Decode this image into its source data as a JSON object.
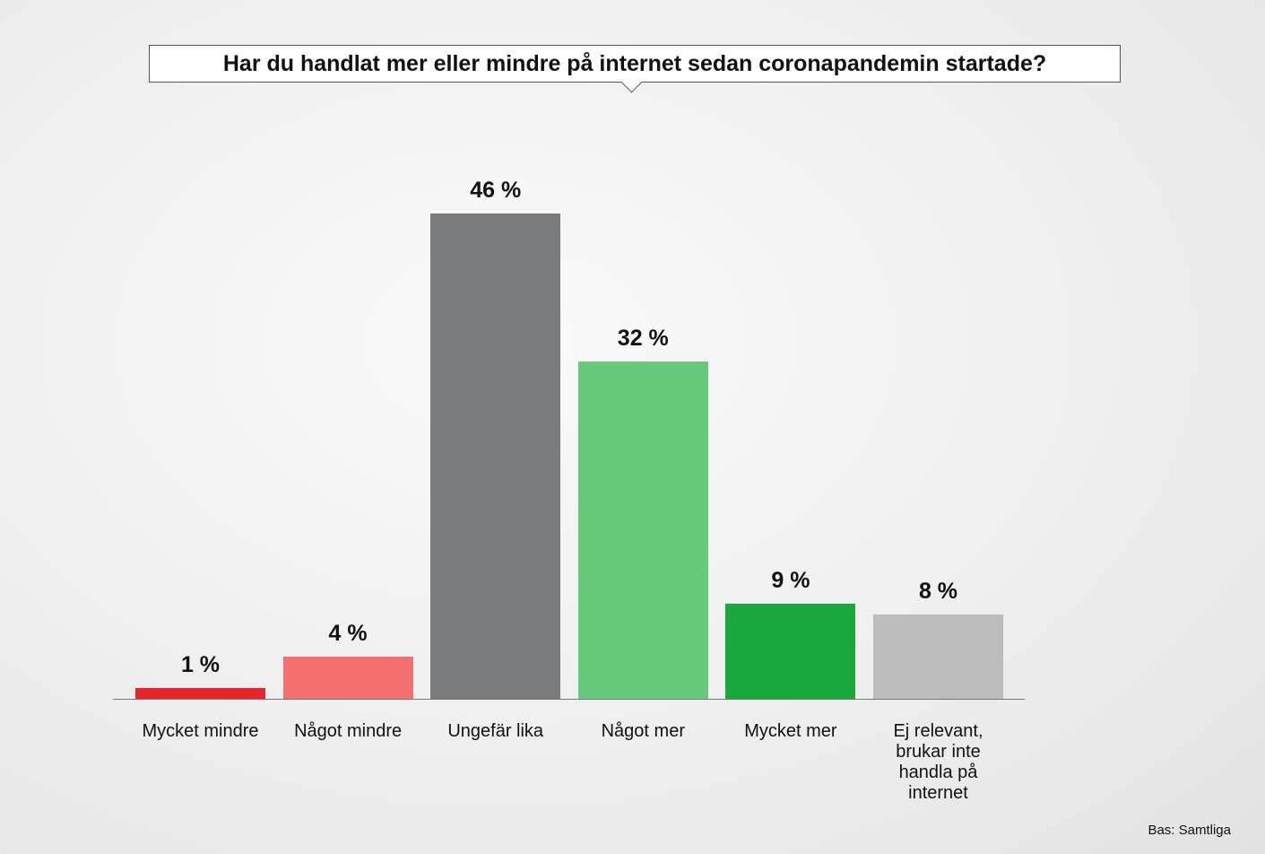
{
  "chart_data": {
    "type": "bar",
    "title": "Har du handlat mer eller mindre på internet sedan coronapandemin startade?",
    "categories": [
      "Mycket mindre",
      "Något mindre",
      "Ungefär lika",
      "Något mer",
      "Mycket mer",
      "Ej relevant, brukar inte handla på internet"
    ],
    "values": [
      1,
      4,
      46,
      32,
      9,
      8
    ],
    "value_labels": [
      "1 %",
      "4 %",
      "46 %",
      "32 %",
      "9 %",
      "8 %"
    ],
    "colors": [
      "#e8242b",
      "#f47070",
      "#7a7b7d",
      "#68c97c",
      "#19a83c",
      "#bcbcbc"
    ],
    "footnote": "Bas: Samtliga"
  }
}
